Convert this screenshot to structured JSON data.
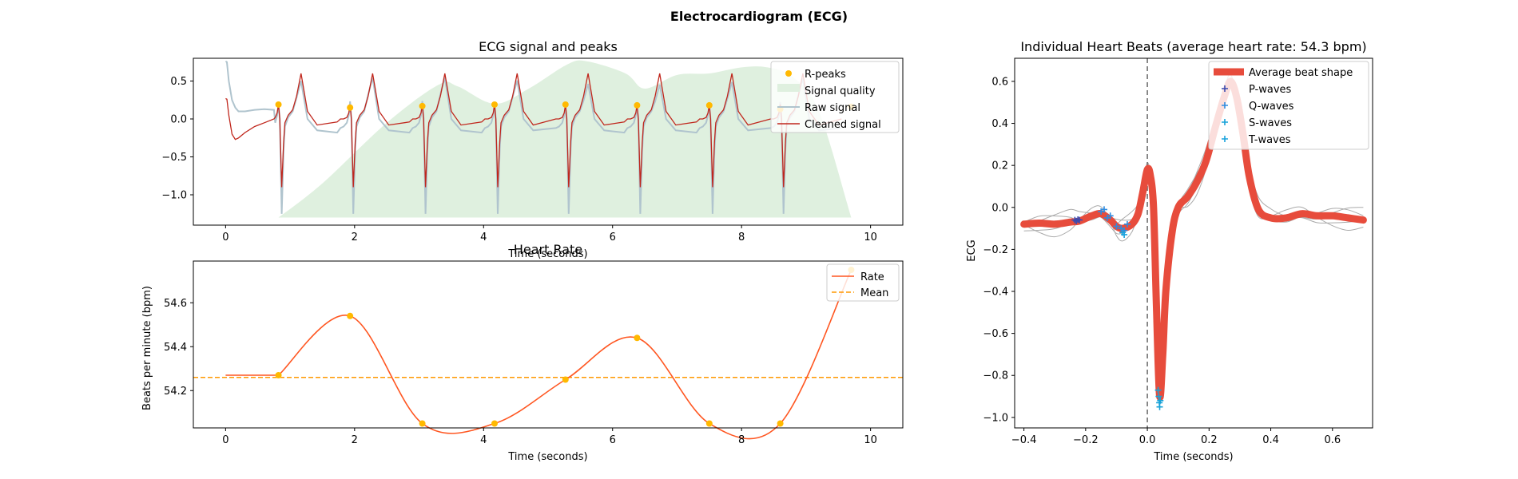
{
  "suptitle": "Electrocardiogram (ECG)",
  "chart_data": [
    {
      "id": "ecg",
      "type": "line",
      "title": "ECG signal and peaks",
      "xlabel": "Time (seconds)",
      "ylabel": "",
      "xlim": [
        -0.5,
        10.5
      ],
      "ylim": [
        -1.4,
        0.8
      ],
      "xticks": [
        0,
        2,
        4,
        6,
        8,
        10
      ],
      "yticks": [
        -1.0,
        -0.5,
        0.0,
        0.5
      ],
      "ytick_labels": [
        "−1.0",
        "−0.5",
        "0.0",
        "0.5"
      ],
      "legend": [
        "R-peaks",
        "Signal quality",
        "Raw signal",
        "Cleaned signal"
      ],
      "legend_position": "top-right",
      "colors": {
        "rpeaks": "#FFB900",
        "quality": "#DFF0DF",
        "raw": "#B0C4CE",
        "clean": "#C0261C"
      },
      "rpeaks": {
        "x": [
          0.82,
          1.93,
          3.05,
          4.17,
          5.27,
          6.38,
          7.5,
          8.6,
          9.7
        ],
        "y": [
          0.19,
          0.15,
          0.17,
          0.19,
          0.19,
          0.18,
          0.18,
          0.13,
          0.16
        ]
      },
      "quality": {
        "x": [
          0.82,
          1.5,
          2.5,
          3.3,
          3.6,
          4.17,
          4.7,
          5.3,
          5.6,
          6.2,
          6.5,
          7.0,
          7.5,
          8.0,
          8.4,
          8.8,
          9.2,
          9.7
        ],
        "y": [
          -1.3,
          -0.85,
          -0.05,
          0.45,
          0.43,
          0.2,
          0.4,
          0.72,
          0.76,
          0.6,
          0.4,
          0.58,
          0.6,
          0.68,
          0.68,
          0.55,
          0.1,
          -1.3
        ]
      },
      "baseline": {
        "x": [
          0.0,
          0.02,
          0.05,
          0.1,
          0.15,
          0.2,
          0.3,
          0.45,
          0.6,
          0.75
        ],
        "clean": [
          0.27,
          0.26,
          0.05,
          -0.2,
          -0.27,
          -0.25,
          -0.18,
          -0.1,
          -0.05,
          0.0
        ],
        "raw": [
          0.76,
          0.75,
          0.5,
          0.25,
          0.15,
          0.1,
          0.1,
          0.12,
          0.13,
          0.12
        ]
      },
      "beat_template": {
        "dt": [
          -0.42,
          -0.38,
          -0.3,
          -0.2,
          -0.15,
          -0.1,
          -0.05,
          -0.02,
          0,
          0.02,
          0.05,
          0.08,
          0.1,
          0.15,
          0.22,
          0.28,
          0.35,
          0.45,
          0.6,
          0.9
        ],
        "clean": [
          -0.05,
          -0.03,
          -0.05,
          -0.04,
          0.0,
          0.0,
          0.02,
          0.08,
          0.19,
          0.0,
          -0.9,
          -0.3,
          -0.05,
          0.05,
          0.12,
          0.3,
          0.6,
          0.1,
          -0.08,
          -0.05
        ],
        "raw": [
          -0.08,
          -0.1,
          -0.15,
          -0.18,
          -0.12,
          -0.1,
          -0.05,
          0.05,
          0.19,
          0.0,
          -1.25,
          -0.4,
          -0.1,
          0.02,
          0.1,
          0.28,
          0.5,
          0.0,
          -0.15,
          -0.15
        ]
      }
    },
    {
      "id": "hr",
      "type": "line",
      "title": "Heart Rate",
      "xlabel": "Time (seconds)",
      "ylabel": "Beats per minute (bpm)",
      "xlim": [
        -0.5,
        10.5
      ],
      "ylim": [
        54.03,
        54.79
      ],
      "xticks": [
        0,
        2,
        4,
        6,
        8,
        10
      ],
      "yticks": [
        54.2,
        54.4,
        54.6
      ],
      "legend": [
        "Rate",
        "Mean"
      ],
      "legend_position": "top-right",
      "colors": {
        "rate": "#FF5722",
        "mean": "#FF9800",
        "points": "#FFB900"
      },
      "peaks": {
        "x": [
          0.82,
          1.93,
          3.05,
          4.17,
          5.27,
          6.38,
          7.5,
          8.6,
          9.7
        ],
        "y": [
          54.27,
          54.54,
          54.05,
          54.05,
          54.25,
          54.44,
          54.05,
          54.05,
          54.75
        ]
      },
      "flat_start": {
        "x": [
          0.0,
          0.82
        ],
        "y": [
          54.27,
          54.27
        ]
      },
      "mean": 54.26
    },
    {
      "id": "beats",
      "type": "line",
      "title": "Individual Heart Beats (average heart rate: 54.3 bpm)",
      "xlabel": "Time (seconds)",
      "ylabel": "ECG",
      "xlim": [
        -0.43,
        0.73
      ],
      "ylim": [
        -1.05,
        0.71
      ],
      "xticks": [
        -0.4,
        -0.2,
        0.0,
        0.2,
        0.4,
        0.6
      ],
      "xtick_labels": [
        "−0.4",
        "−0.2",
        "0.0",
        "0.2",
        "0.4",
        "0.6"
      ],
      "yticks": [
        -1.0,
        -0.8,
        -0.6,
        -0.4,
        -0.2,
        0.0,
        0.2,
        0.4,
        0.6
      ],
      "ytick_labels": [
        "−1.0",
        "−0.8",
        "−0.6",
        "−0.4",
        "−0.2",
        "0.0",
        "0.2",
        "0.4",
        "0.6"
      ],
      "legend": [
        "Average beat shape",
        "P-waves",
        "Q-waves",
        "S-waves",
        "T-waves"
      ],
      "legend_position": "top-right",
      "colors": {
        "average": "#E74C3C",
        "p": "#3A4BB0",
        "q": "#2E8BE0",
        "s": "#17A2D8",
        "t": "#1BA3DD",
        "beats": "#AAAAAA",
        "vline": "#666666"
      },
      "average": {
        "x": [
          -0.4,
          -0.35,
          -0.3,
          -0.25,
          -0.22,
          -0.18,
          -0.15,
          -0.12,
          -0.1,
          -0.08,
          -0.05,
          -0.03,
          -0.015,
          0.0,
          0.01,
          0.02,
          0.03,
          0.04,
          0.05,
          0.06,
          0.08,
          0.1,
          0.13,
          0.16,
          0.19,
          0.22,
          0.25,
          0.27,
          0.29,
          0.31,
          0.33,
          0.36,
          0.4,
          0.45,
          0.5,
          0.55,
          0.6,
          0.65,
          0.7
        ],
        "y": [
          -0.08,
          -0.075,
          -0.08,
          -0.07,
          -0.065,
          -0.04,
          -0.03,
          -0.06,
          -0.09,
          -0.1,
          -0.08,
          -0.03,
          0.07,
          0.18,
          0.15,
          0.0,
          -0.5,
          -0.9,
          -0.7,
          -0.4,
          -0.12,
          0.0,
          0.05,
          0.12,
          0.22,
          0.38,
          0.53,
          0.6,
          0.52,
          0.35,
          0.15,
          -0.01,
          -0.05,
          -0.05,
          -0.03,
          -0.04,
          -0.04,
          -0.05,
          -0.06
        ]
      },
      "p_waves": {
        "x": [
          -0.235,
          -0.23,
          -0.225,
          -0.22
        ],
        "y": [
          -0.06,
          -0.065,
          -0.058,
          -0.06
        ]
      },
      "q_waves": {
        "x": [
          -0.15,
          -0.14,
          -0.13,
          -0.12,
          -0.1,
          -0.085,
          -0.075,
          -0.065
        ],
        "y": [
          -0.02,
          -0.01,
          -0.05,
          -0.04,
          -0.09,
          -0.1,
          -0.11,
          -0.08
        ]
      },
      "s_waves": {
        "x": [
          0.035,
          0.037,
          0.039,
          0.04,
          0.042
        ],
        "y": [
          -0.87,
          -0.9,
          -0.93,
          -0.95,
          -0.92
        ]
      },
      "t_waves": {
        "x": [
          -0.08,
          -0.075
        ],
        "y": [
          -0.12,
          -0.13
        ]
      }
    }
  ]
}
